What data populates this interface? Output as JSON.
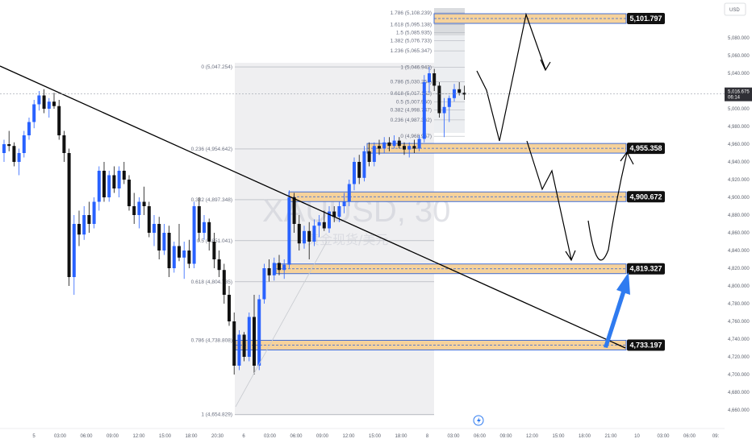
{
  "chart_data": {
    "type": "candlestick",
    "currency": "USD",
    "watermark": "XAUUSD, 30",
    "watermark_sub": "黄金现货/美元",
    "ylim": [
      4650,
      5116
    ],
    "y_ticks": [
      {
        "v": 5080,
        "t": "5,080.000"
      },
      {
        "v": 5060,
        "t": "5,060.000"
      },
      {
        "v": 5040,
        "t": "5,040.000"
      },
      {
        "v": 5020,
        "t": "5,020.000"
      },
      {
        "v": 5000,
        "t": "5,000.000"
      },
      {
        "v": 4980,
        "t": "4,980.000"
      },
      {
        "v": 4960,
        "t": "4,960.000"
      },
      {
        "v": 4940,
        "t": "4,940.000"
      },
      {
        "v": 4920,
        "t": "4,920.000"
      },
      {
        "v": 4900,
        "t": "4,900.000"
      },
      {
        "v": 4880,
        "t": "4,880.000"
      },
      {
        "v": 4860,
        "t": "4,860.000"
      },
      {
        "v": 4840,
        "t": "4,840.000"
      },
      {
        "v": 4820,
        "t": "4,820.000"
      },
      {
        "v": 4800,
        "t": "4,800.000"
      },
      {
        "v": 4780,
        "t": "4,780.000"
      },
      {
        "v": 4760,
        "t": "4,760.000"
      },
      {
        "v": 4740,
        "t": "4,740.000"
      },
      {
        "v": 4720,
        "t": "4,720.000"
      },
      {
        "v": 4700,
        "t": "4,700.000"
      },
      {
        "v": 4680,
        "t": "4,680.000"
      },
      {
        "v": 4660,
        "t": "4,660.000"
      }
    ],
    "x_ticks": [
      "5",
      "03:00",
      "06:00",
      "09:00",
      "12:00",
      "15:00",
      "18:00",
      "20:30",
      "6",
      "03:00",
      "06:00",
      "09:00",
      "12:00",
      "15:00",
      "18:00",
      "8",
      "03:00",
      "06:00",
      "09:00",
      "12:00",
      "15:00",
      "18:00",
      "21:00",
      "10",
      "03:00",
      "06:00",
      "09:"
    ],
    "current_price": {
      "value": 5016.675,
      "label": "5,016.675",
      "countdown": "06:14"
    },
    "fib_left": [
      {
        "v": 5047.254,
        "t": "0 (5,047.254)"
      },
      {
        "v": 4954.642,
        "t": "0.236 (4,954.642)"
      },
      {
        "v": 4897.348,
        "t": "0.382 (4,897.348)"
      },
      {
        "v": 4851.041,
        "t": "0.5 (4,851.041)"
      },
      {
        "v": 4804.735,
        "t": "0.618 (4,804.735)"
      },
      {
        "v": 4738.808,
        "t": "0.786 (4,738.808)"
      },
      {
        "v": 4654.829,
        "t": "1 (4,654.829)"
      }
    ],
    "fib_right": [
      {
        "v": 5108.239,
        "t": "1.786 (5,108.239)"
      },
      {
        "v": 5095.138,
        "t": "1.618 (5,095.138)"
      },
      {
        "v": 5085.935,
        "t": "1.5 (5,085.935)"
      },
      {
        "v": 5076.733,
        "t": "1.382 (5,076.733)"
      },
      {
        "v": 5065.347,
        "t": "1.236 (5,065.347)"
      },
      {
        "v": 5046.942,
        "t": "1 (5,046.942)"
      },
      {
        "v": 5030.254,
        "t": "0.786 (5,030.254)"
      },
      {
        "v": 5017.152,
        "t": "0.618 (5,017.152)"
      },
      {
        "v": 5007.95,
        "t": "0.5 (5,007.950)"
      },
      {
        "v": 4998.747,
        "t": "0.382 (4,998.747)"
      },
      {
        "v": 4987.362,
        "t": "0.236 (4,987.362)"
      },
      {
        "v": 4968.957,
        "t": "0 (4,968.957)"
      }
    ],
    "zones": [
      {
        "v": 5101.797,
        "label": "5,101.797"
      },
      {
        "v": 4955.358,
        "label": "4,955.358"
      },
      {
        "v": 4900.672,
        "label": "4,900.672"
      },
      {
        "v": 4819.327,
        "label": "4,819.327"
      },
      {
        "v": 4733.197,
        "label": "4,733.197"
      }
    ],
    "candles": [
      [
        4950,
        4965,
        4940,
        4960
      ],
      [
        4960,
        4975,
        4952,
        4958
      ],
      [
        4958,
        4962,
        4935,
        4940
      ],
      [
        4940,
        4955,
        4925,
        4950
      ],
      [
        4950,
        4975,
        4945,
        4970
      ],
      [
        4970,
        4990,
        4965,
        4985
      ],
      [
        4985,
        5010,
        4978,
        5005
      ],
      [
        5005,
        5020,
        4998,
        5015
      ],
      [
        5015,
        5022,
        4995,
        5000
      ],
      [
        5000,
        5012,
        4990,
        5008
      ],
      [
        5008,
        5018,
        5000,
        5003
      ],
      [
        5003,
        5010,
        4965,
        4970
      ],
      [
        4970,
        4975,
        4940,
        4950
      ],
      [
        4950,
        4955,
        4800,
        4810
      ],
      [
        4810,
        4880,
        4790,
        4870
      ],
      [
        4870,
        4885,
        4845,
        4858
      ],
      [
        4858,
        4890,
        4852,
        4880
      ],
      [
        4880,
        4895,
        4860,
        4870
      ],
      [
        4870,
        4900,
        4865,
        4895
      ],
      [
        4895,
        4935,
        4885,
        4930
      ],
      [
        4930,
        4940,
        4895,
        4900
      ],
      [
        4900,
        4930,
        4895,
        4925
      ],
      [
        4925,
        4935,
        4905,
        4910
      ],
      [
        4910,
        4935,
        4900,
        4930
      ],
      [
        4930,
        4940,
        4915,
        4920
      ],
      [
        4920,
        4925,
        4885,
        4890
      ],
      [
        4890,
        4905,
        4870,
        4880
      ],
      [
        4880,
        4900,
        4865,
        4895
      ],
      [
        4895,
        4912,
        4880,
        4890
      ],
      [
        4890,
        4895,
        4855,
        4860
      ],
      [
        4860,
        4880,
        4845,
        4870
      ],
      [
        4870,
        4878,
        4830,
        4840
      ],
      [
        4840,
        4870,
        4835,
        4860
      ],
      [
        4860,
        4868,
        4810,
        4820
      ],
      [
        4820,
        4850,
        4815,
        4845
      ],
      [
        4845,
        4870,
        4828,
        4832
      ],
      [
        4832,
        4850,
        4808,
        4840
      ],
      [
        4840,
        4852,
        4820,
        4825
      ],
      [
        4825,
        4895,
        4820,
        4890
      ],
      [
        4890,
        4900,
        4850,
        4860
      ],
      [
        4860,
        4880,
        4852,
        4872
      ],
      [
        4872,
        4876,
        4840,
        4850
      ],
      [
        4850,
        4860,
        4820,
        4830
      ],
      [
        4830,
        4840,
        4810,
        4818
      ],
      [
        4818,
        4825,
        4780,
        4790
      ],
      [
        4790,
        4800,
        4755,
        4760
      ],
      [
        4760,
        4770,
        4700,
        4710
      ],
      [
        4710,
        4750,
        4705,
        4745
      ],
      [
        4745,
        4748,
        4715,
        4720
      ],
      [
        4720,
        4770,
        4715,
        4765
      ],
      [
        4765,
        4790,
        4700,
        4710
      ],
      [
        4710,
        4790,
        4705,
        4785
      ],
      [
        4785,
        4825,
        4780,
        4820
      ],
      [
        4820,
        4830,
        4805,
        4812
      ],
      [
        4812,
        4832,
        4806,
        4826
      ],
      [
        4826,
        4835,
        4812,
        4818
      ],
      [
        4818,
        4830,
        4808,
        4824
      ],
      [
        4824,
        4908,
        4820,
        4900
      ],
      [
        4900,
        4905,
        4860,
        4870
      ],
      [
        4870,
        4880,
        4840,
        4848
      ],
      [
        4848,
        4868,
        4842,
        4862
      ],
      [
        4862,
        4872,
        4830,
        4850
      ],
      [
        4850,
        4875,
        4845,
        4868
      ],
      [
        4868,
        4880,
        4855,
        4872
      ],
      [
        4872,
        4885,
        4862,
        4865
      ],
      [
        4865,
        4890,
        4860,
        4884
      ],
      [
        4884,
        4890,
        4872,
        4878
      ],
      [
        4878,
        4895,
        4872,
        4890
      ],
      [
        4890,
        4905,
        4882,
        4895
      ],
      [
        4895,
        4920,
        4890,
        4915
      ],
      [
        4915,
        4945,
        4908,
        4940
      ],
      [
        4940,
        4948,
        4915,
        4922
      ],
      [
        4922,
        4958,
        4918,
        4952
      ],
      [
        4952,
        4962,
        4935,
        4940
      ],
      [
        4940,
        4962,
        4935,
        4958
      ],
      [
        4958,
        4965,
        4948,
        4955
      ],
      [
        4955,
        4968,
        4950,
        4962
      ],
      [
        4962,
        4968,
        4952,
        4958
      ],
      [
        4958,
        4970,
        4955,
        4964
      ],
      [
        4964,
        4968,
        4955,
        4958
      ],
      [
        4958,
        4962,
        4948,
        4954
      ],
      [
        4954,
        4962,
        4945,
        4958
      ],
      [
        4958,
        4965,
        4950,
        4955
      ],
      [
        4955,
        4970,
        4952,
        4966
      ],
      [
        4966,
        5038,
        4962,
        5030
      ],
      [
        5030,
        5047,
        5018,
        5040
      ],
      [
        5040,
        5045,
        5020,
        5026
      ],
      [
        5026,
        5030,
        4990,
        4995
      ],
      [
        4995,
        5012,
        4968,
        5002
      ],
      [
        5002,
        5015,
        4985,
        5012
      ],
      [
        5012,
        5028,
        5008,
        5022
      ],
      [
        5022,
        5030,
        5015,
        5018
      ],
      [
        5018,
        5026,
        5010,
        5016
      ]
    ]
  }
}
